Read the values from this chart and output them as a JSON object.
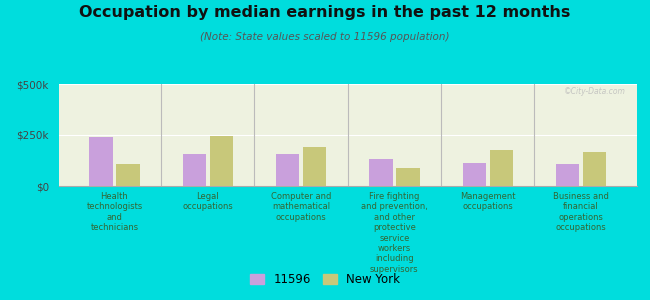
{
  "title": "Occupation by median earnings in the past 12 months",
  "subtitle": "(Note: State values scaled to 11596 population)",
  "background_color": "#00DDDD",
  "plot_bg": "#eef2e0",
  "categories": [
    "Health\ntechnologists\nand\ntechnicians",
    "Legal\noccupations",
    "Computer and\nmathematical\noccupations",
    "Fire fighting\nand prevention,\nand other\nprotective\nservice\nworkers\nincluding\nsupervisors",
    "Management\noccupations",
    "Business and\nfinancial\noperations\noccupations"
  ],
  "values_11596": [
    240000,
    155000,
    155000,
    130000,
    115000,
    110000
  ],
  "values_ny": [
    110000,
    245000,
    190000,
    90000,
    175000,
    165000
  ],
  "color_11596": "#c9a0dc",
  "color_ny": "#c8c87a",
  "ylim": [
    0,
    500000
  ],
  "yticks": [
    0,
    250000,
    500000
  ],
  "ytick_labels": [
    "$0",
    "$250k",
    "$500k"
  ],
  "legend_labels": [
    "11596",
    "New York"
  ],
  "watermark": "©City-Data.com"
}
